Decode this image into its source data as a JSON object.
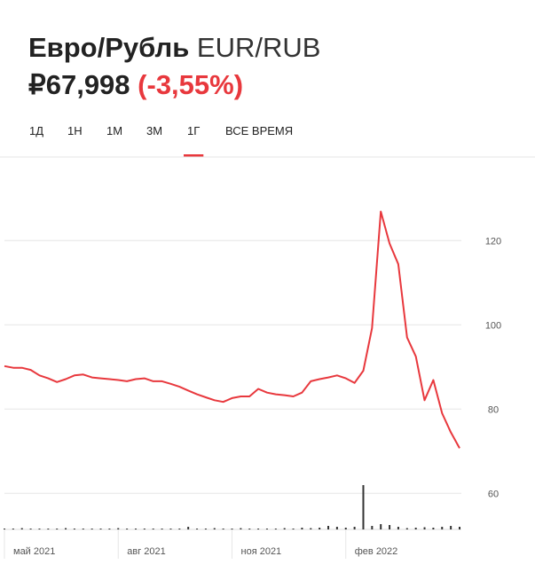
{
  "header": {
    "title": "Евро/Рубль",
    "symbol": "EUR/RUB",
    "price": "₽67,998",
    "change": "(-3,55%)"
  },
  "tabs": {
    "items": [
      "1Д",
      "1Н",
      "1М",
      "3М",
      "1Г",
      "ВСЕ ВРЕМЯ"
    ],
    "active": 4
  },
  "chart_data": {
    "type": "line",
    "categories": [
      "май 2021",
      null,
      null,
      null,
      null,
      null,
      null,
      null,
      null,
      null,
      null,
      null,
      null,
      "авг 2021",
      null,
      null,
      null,
      null,
      null,
      null,
      null,
      null,
      null,
      null,
      null,
      null,
      "ноя 2021",
      null,
      null,
      null,
      null,
      null,
      null,
      null,
      null,
      null,
      null,
      null,
      null,
      "фев 2022",
      null,
      null,
      null,
      null,
      null,
      null,
      null,
      null,
      null,
      null,
      null,
      null,
      null
    ],
    "series": [
      {
        "name": "EUR/RUB",
        "color": "#e8383d",
        "values": [
          90.2,
          89.8,
          89.8,
          89.3,
          88,
          87.3,
          86.4,
          87.1,
          88,
          88.2,
          87.5,
          87.3,
          87.1,
          86.9,
          86.6,
          87.1,
          87.3,
          86.6,
          86.6,
          86,
          85.3,
          84.4,
          83.5,
          82.8,
          82.1,
          81.7,
          82.6,
          83,
          83,
          84.8,
          83.9,
          83.5,
          83.3,
          83,
          83.9,
          86.6,
          87.1,
          87.5,
          88,
          87.3,
          86.2,
          89.1,
          99.2,
          126.9,
          119.3,
          114.4,
          97,
          92.5,
          82.1,
          86.9,
          79,
          74.5,
          70.7
        ]
      },
      {
        "name": "Объём",
        "color": "#333333",
        "axis": "y2",
        "values": [
          2,
          2,
          3,
          2,
          2,
          2,
          2,
          3,
          2,
          2,
          2,
          2,
          2,
          3,
          2,
          2,
          2,
          2,
          2,
          2,
          2,
          6,
          2,
          2,
          3,
          2,
          2,
          3,
          2,
          2,
          2,
          2,
          3,
          2,
          4,
          3,
          4,
          8,
          6,
          4,
          6,
          100,
          8,
          12,
          10,
          6,
          3,
          4,
          5,
          4,
          6,
          8,
          6
        ]
      }
    ],
    "ylim": [
      55,
      135
    ],
    "yticks": [
      60,
      80,
      100,
      120
    ],
    "y2lim": [
      0,
      100
    ],
    "grid": true
  }
}
